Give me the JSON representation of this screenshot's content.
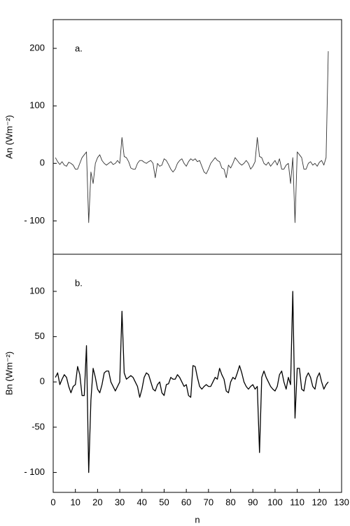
{
  "chart_data": [
    {
      "type": "line",
      "annotation": "a.",
      "y_label": "An (Wm⁻²)",
      "x": [
        1,
        2,
        3,
        4,
        5,
        6,
        7,
        8,
        9,
        10,
        11,
        12,
        13,
        14,
        15,
        16,
        17,
        18,
        19,
        20,
        21,
        22,
        23,
        24,
        25,
        26,
        27,
        28,
        29,
        30,
        31,
        32,
        33,
        34,
        35,
        36,
        37,
        38,
        39,
        40,
        41,
        42,
        43,
        44,
        45,
        46,
        47,
        48,
        49,
        50,
        51,
        52,
        53,
        54,
        55,
        56,
        57,
        58,
        59,
        60,
        61,
        62,
        63,
        64,
        65,
        66,
        67,
        68,
        69,
        70,
        71,
        72,
        73,
        74,
        75,
        76,
        77,
        78,
        79,
        80,
        81,
        82,
        83,
        84,
        85,
        86,
        87,
        88,
        89,
        90,
        91,
        92,
        93,
        94,
        95,
        96,
        97,
        98,
        99,
        100,
        101,
        102,
        103,
        104,
        105,
        106,
        107,
        108,
        109,
        110,
        111,
        112,
        113,
        114,
        115,
        116,
        117,
        118,
        119,
        120,
        121,
        122,
        123,
        124
      ],
      "values": [
        10,
        3,
        -2,
        3,
        -3,
        -5,
        2,
        0,
        -3,
        -10,
        -10,
        0,
        10,
        15,
        20,
        -103,
        -15,
        -35,
        0,
        10,
        15,
        5,
        0,
        -3,
        0,
        3,
        -2,
        0,
        5,
        0,
        45,
        12,
        10,
        3,
        -8,
        -10,
        -10,
        0,
        5,
        5,
        2,
        0,
        3,
        5,
        0,
        -25,
        0,
        -5,
        -3,
        8,
        5,
        -2,
        -10,
        -15,
        -10,
        0,
        5,
        8,
        0,
        -5,
        3,
        8,
        5,
        8,
        3,
        5,
        -5,
        -15,
        -18,
        -10,
        0,
        5,
        10,
        5,
        3,
        -8,
        -10,
        -25,
        -3,
        -8,
        0,
        10,
        5,
        0,
        -3,
        0,
        5,
        0,
        -10,
        -5,
        3,
        45,
        12,
        10,
        0,
        -3,
        2,
        -5,
        0,
        5,
        -3,
        8,
        -10,
        -10,
        -3,
        0,
        -35,
        10,
        -103,
        20,
        15,
        10,
        -10,
        -10,
        0,
        3,
        -3,
        0,
        -5,
        2,
        5,
        -3,
        10,
        195
      ],
      "color": "#333333",
      "xlim": [
        0,
        130
      ],
      "ylim": [
        -158,
        250
      ],
      "yticks": [
        {
          "value": -100,
          "label": "- 100"
        },
        0,
        100,
        200
      ]
    },
    {
      "type": "line",
      "annotation": "b.",
      "y_label": "Bn (Wm⁻²)",
      "x_label": "n",
      "x": [
        1,
        2,
        3,
        4,
        5,
        6,
        7,
        8,
        9,
        10,
        11,
        12,
        13,
        14,
        15,
        16,
        17,
        18,
        19,
        20,
        21,
        22,
        23,
        24,
        25,
        26,
        27,
        28,
        29,
        30,
        31,
        32,
        33,
        34,
        35,
        36,
        37,
        38,
        39,
        40,
        41,
        42,
        43,
        44,
        45,
        46,
        47,
        48,
        49,
        50,
        51,
        52,
        53,
        54,
        55,
        56,
        57,
        58,
        59,
        60,
        61,
        62,
        63,
        64,
        65,
        66,
        67,
        68,
        69,
        70,
        71,
        72,
        73,
        74,
        75,
        76,
        77,
        78,
        79,
        80,
        81,
        82,
        83,
        84,
        85,
        86,
        87,
        88,
        89,
        90,
        91,
        92,
        93,
        94,
        95,
        96,
        97,
        98,
        99,
        100,
        101,
        102,
        103,
        104,
        105,
        106,
        107,
        108,
        109,
        110,
        111,
        112,
        113,
        114,
        115,
        116,
        117,
        118,
        119,
        120,
        121,
        122,
        123,
        124
      ],
      "values": [
        5,
        10,
        -3,
        3,
        8,
        5,
        -5,
        -12,
        -5,
        -3,
        17,
        8,
        -15,
        -15,
        40,
        -100,
        -20,
        15,
        5,
        -8,
        -12,
        -3,
        10,
        12,
        12,
        0,
        -5,
        -10,
        -5,
        0,
        78,
        10,
        3,
        5,
        7,
        5,
        0,
        -5,
        -17,
        -8,
        5,
        10,
        8,
        0,
        -8,
        -10,
        -3,
        0,
        -12,
        -15,
        -3,
        -2,
        5,
        3,
        3,
        8,
        5,
        0,
        -5,
        -3,
        -15,
        -17,
        18,
        17,
        5,
        -5,
        -8,
        -5,
        -3,
        -5,
        -5,
        0,
        5,
        3,
        15,
        8,
        3,
        -10,
        -12,
        0,
        5,
        3,
        10,
        18,
        10,
        0,
        -5,
        -8,
        -5,
        -3,
        -8,
        -5,
        -78,
        5,
        12,
        5,
        0,
        -5,
        -8,
        -10,
        -5,
        8,
        12,
        0,
        -8,
        5,
        -3,
        100,
        -40,
        15,
        15,
        -8,
        -10,
        5,
        10,
        5,
        -5,
        -8,
        5,
        10,
        0,
        -8,
        -3,
        0
      ],
      "color": "#000000",
      "xlim": [
        0,
        130
      ],
      "ylim": [
        -122,
        141
      ],
      "xticks": [
        0,
        10,
        20,
        30,
        40,
        50,
        60,
        70,
        80,
        90,
        100,
        110,
        120,
        130
      ],
      "yticks": [
        {
          "value": -100,
          "label": "- 100"
        },
        -50,
        0,
        50,
        100
      ]
    }
  ]
}
